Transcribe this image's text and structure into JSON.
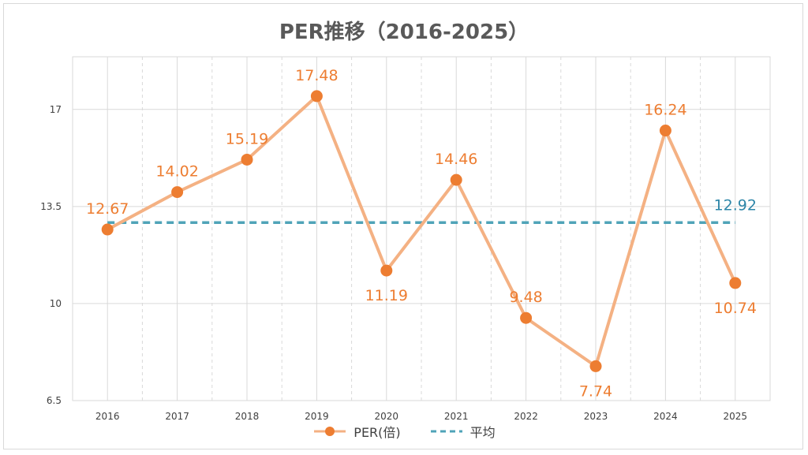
{
  "chart_data": {
    "type": "line",
    "title": "PER推移（2016-2025）",
    "categories": [
      "2016",
      "2017",
      "2018",
      "2019",
      "2020",
      "2021",
      "2022",
      "2023",
      "2024",
      "2025"
    ],
    "series": [
      {
        "name": "PER(倍)",
        "values": [
          12.67,
          14.02,
          15.19,
          17.48,
          11.19,
          14.46,
          9.48,
          7.74,
          16.24,
          10.74
        ],
        "color": "#f4b183",
        "marker_color": "#ed7d31",
        "label_color": "#ed7d31"
      },
      {
        "name": "平均",
        "values": [
          12.92,
          12.92,
          12.92,
          12.92,
          12.92,
          12.92,
          12.92,
          12.92,
          12.92,
          12.92
        ],
        "color": "#4fa3b8",
        "label_color": "#2e86a8",
        "style": "dashed",
        "end_label": "12.92"
      }
    ],
    "data_labels": [
      "12.67",
      "14.02",
      "15.19",
      "17.48",
      "11.19",
      "14.46",
      "9.48",
      "7.74",
      "16.24",
      "10.74"
    ],
    "y_ticks": [
      "6.5",
      "10",
      "13.5",
      "17"
    ],
    "ylim": [
      6.5,
      18.9
    ],
    "grid": true,
    "legend_position": "bottom"
  }
}
